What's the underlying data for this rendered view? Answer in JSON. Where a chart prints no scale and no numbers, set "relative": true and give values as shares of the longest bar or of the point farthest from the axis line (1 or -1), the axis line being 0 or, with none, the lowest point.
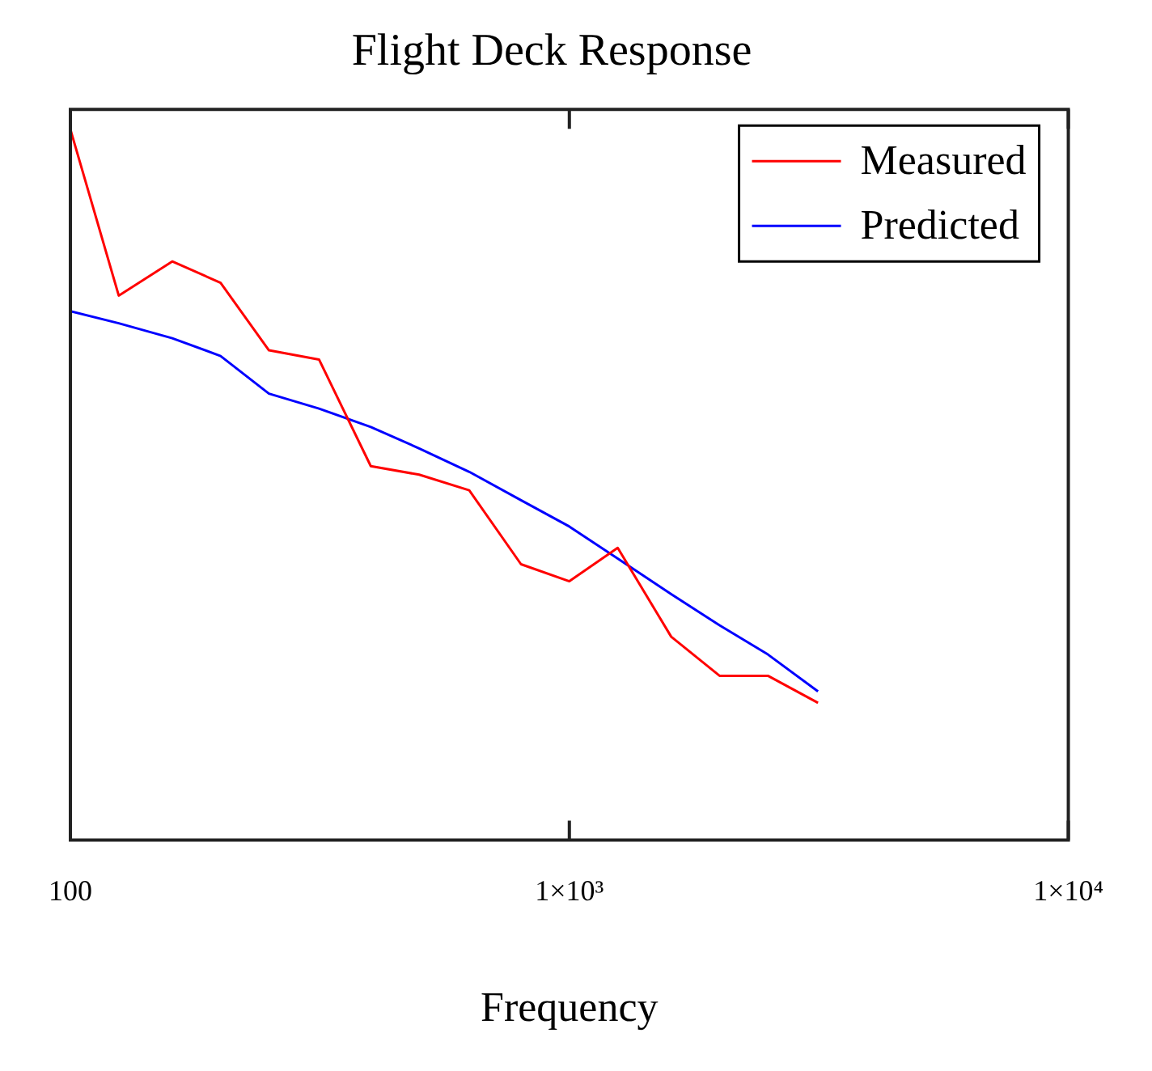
{
  "chart_data": {
    "type": "line",
    "title": "Flight Deck Response",
    "xlabel": "Frequency",
    "log": "x",
    "relative": true,
    "xlim": [
      100,
      10000
    ],
    "xticks": [
      100,
      {
        "value": 1000,
        "label": "1×10³"
      },
      {
        "value": 10000,
        "label": "1×10⁴"
      }
    ],
    "x": [
      100,
      125,
      160,
      200,
      250,
      315,
      400,
      500,
      630,
      800,
      1000,
      1250,
      1600,
      2000,
      2500,
      3150
    ],
    "legend": "top right",
    "grid": false,
    "marker": "none",
    "line_style": "solid",
    "series": [
      {
        "name": "Measured",
        "color": "#ff0000",
        "values": [
          1,
          0.766,
          0.814,
          0.784,
          0.689,
          0.676,
          0.526,
          0.514,
          0.492,
          0.388,
          0.364,
          0.411,
          0.286,
          0.231,
          0.231,
          0.193
        ]
      },
      {
        "name": "Predicted",
        "color": "#0000ff",
        "values": [
          0.744,
          0.727,
          0.706,
          0.681,
          0.628,
          0.607,
          0.581,
          0.551,
          0.518,
          0.478,
          0.441,
          0.396,
          0.346,
          0.302,
          0.261,
          0.209
        ]
      }
    ]
  }
}
